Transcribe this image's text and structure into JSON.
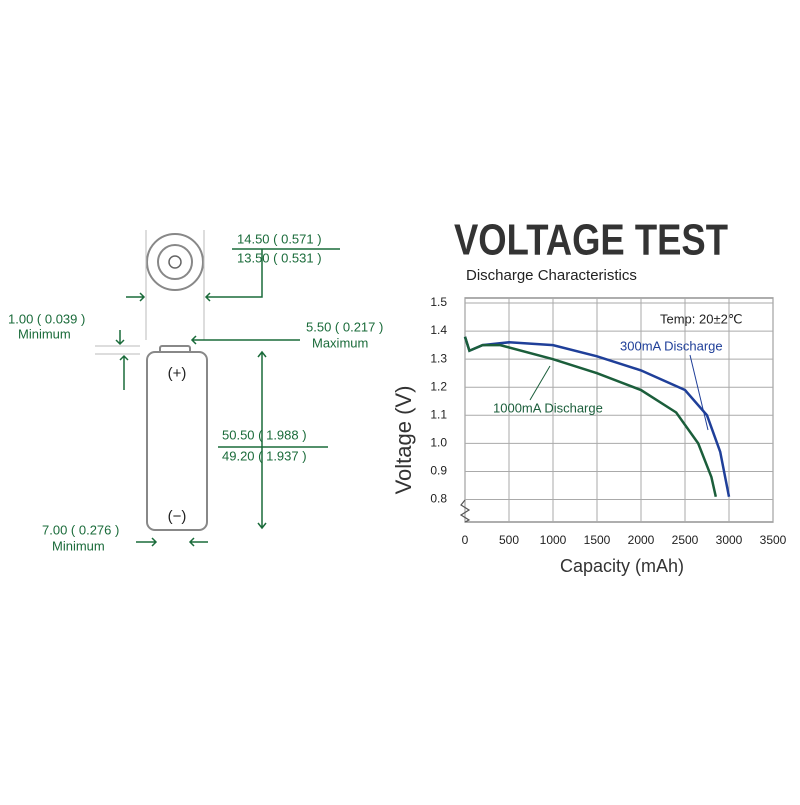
{
  "diagram": {
    "labels": [
      "14.50 ( 0.571 )",
      "13.50 ( 0.531 )",
      "1.00 ( 0.039 )",
      "Minimum",
      "5.50 ( 0.217 )",
      "Maximum",
      "50.50 ( 1.988 )",
      "49.20 ( 1.937 )",
      "7.00 ( 0.276 )",
      "Minimum",
      "(+)",
      "(−)"
    ]
  },
  "chart_data": {
    "type": "line",
    "title": "VOLTAGE TEST",
    "subtitle": "Discharge Characteristics",
    "x_label": "Capacity (mAh)",
    "y_label": "Voltage (V)",
    "annotation": "Temp: 20±2℃",
    "xlim": [
      0,
      3500
    ],
    "xticks": [
      0,
      500,
      1000,
      1500,
      2000,
      2500,
      3000,
      3500
    ],
    "ylim": [
      0.72,
      1.5
    ],
    "yticks": [
      0.8,
      0.9,
      {
        "value": 1,
        "label": "1.0"
      },
      1.1,
      1.2,
      1.3,
      1.4,
      1.5
    ],
    "grid": true,
    "series": [
      {
        "name": "300mA Discharge",
        "color": "#1f3f99",
        "x": [
          0,
          50,
          200,
          500,
          1000,
          1500,
          2000,
          2500,
          2750,
          2900,
          3000
        ],
        "values": [
          1.38,
          1.33,
          1.35,
          1.36,
          1.35,
          1.31,
          1.26,
          1.19,
          1.1,
          0.97,
          0.81
        ]
      },
      {
        "name": "1000mA Discharge",
        "color": "#1b5e3b",
        "x": [
          0,
          50,
          200,
          400,
          1000,
          1500,
          2000,
          2400,
          2650,
          2800,
          2850
        ],
        "values": [
          1.38,
          1.33,
          1.35,
          1.35,
          1.3,
          1.25,
          1.19,
          1.11,
          1.0,
          0.88,
          0.81
        ]
      }
    ]
  }
}
